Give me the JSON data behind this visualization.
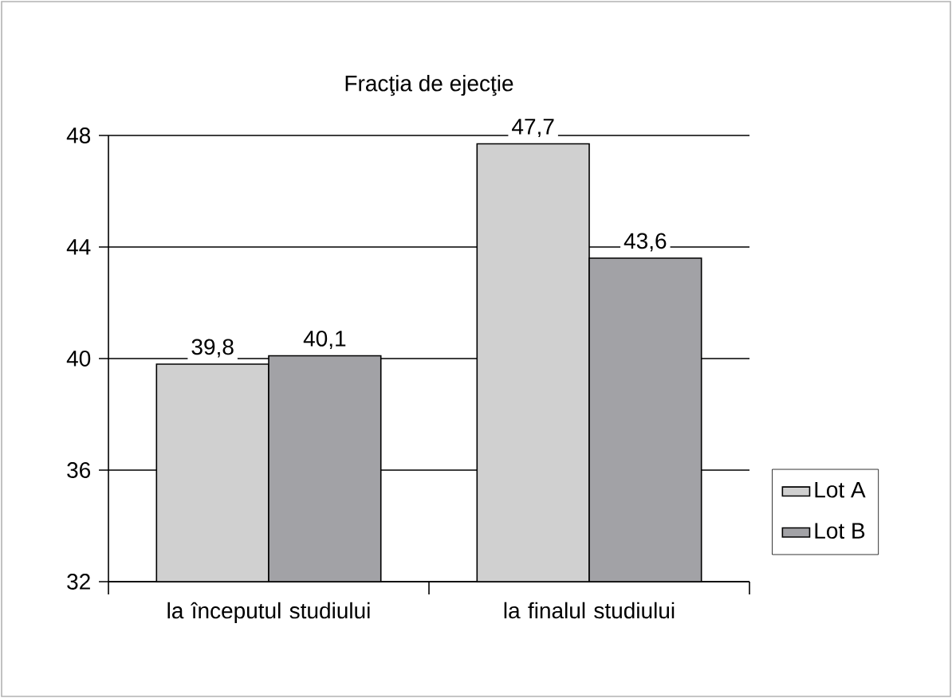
{
  "chart_data": {
    "type": "bar",
    "title": "Fracţia de ejecţie",
    "categories": [
      "la începutul studiului",
      "la finalul studiului"
    ],
    "series": [
      {
        "name": "Lot A",
        "color": "#d0d0d0",
        "values": [
          39.8,
          47.7
        ],
        "value_labels": [
          "39,8",
          "47,7"
        ]
      },
      {
        "name": "Lot B",
        "color": "#a2a2a6",
        "values": [
          40.1,
          43.6
        ],
        "value_labels": [
          "40,1",
          "43,6"
        ]
      }
    ],
    "ylim": [
      32,
      48
    ],
    "yticks": [
      32,
      36,
      40,
      44,
      48
    ],
    "grid": "y",
    "legend": "right"
  }
}
